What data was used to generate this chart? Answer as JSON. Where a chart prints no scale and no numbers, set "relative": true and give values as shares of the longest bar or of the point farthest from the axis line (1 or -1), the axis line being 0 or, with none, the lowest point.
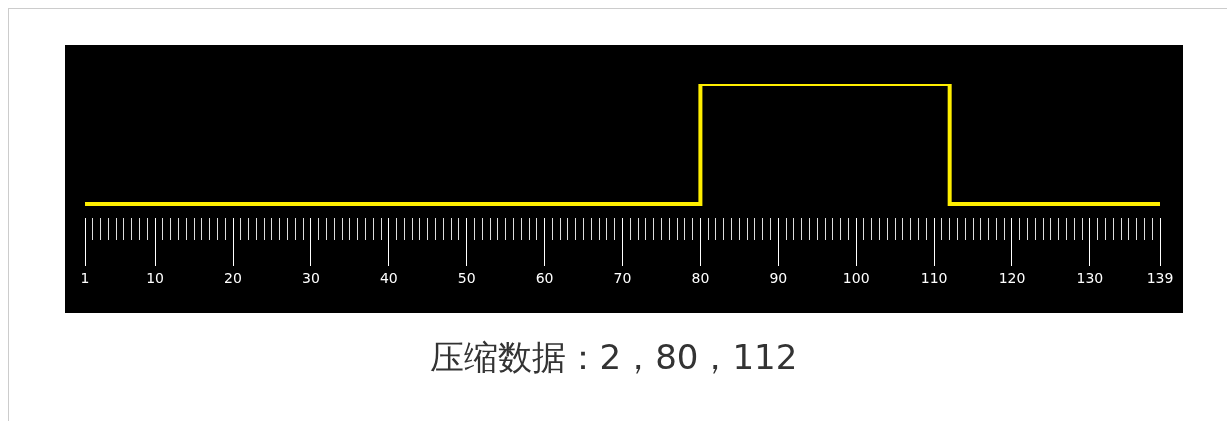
{
  "chart_data": {
    "type": "step",
    "relative": true,
    "x": [
      1,
      80,
      112,
      139
    ],
    "values": [
      0,
      1,
      0,
      0
    ],
    "color": "#ffee00",
    "xlim": [
      1,
      139
    ],
    "xticks": [
      1,
      10,
      20,
      30,
      40,
      50,
      60,
      70,
      80,
      90,
      100,
      110,
      120,
      130,
      139
    ],
    "annotations": [
      "压缩数据：2，80，112"
    ]
  }
}
